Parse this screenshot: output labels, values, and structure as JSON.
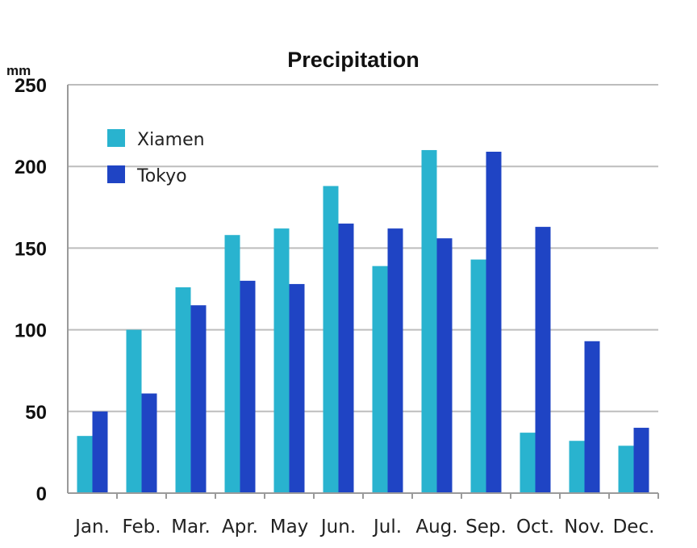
{
  "chart_data": {
    "type": "bar",
    "title": "Precipitation",
    "ylabel": "mm",
    "xlabel": "",
    "ylim": [
      0,
      250
    ],
    "yticks": [
      0,
      50,
      100,
      150,
      200,
      250
    ],
    "grid": true,
    "legend_position": "top-left",
    "categories": [
      "Jan.",
      "Feb.",
      "Mar.",
      "Apr.",
      "May",
      "Jun.",
      "Jul.",
      "Aug.",
      "Sep.",
      "Oct.",
      "Nov.",
      "Dec."
    ],
    "series": [
      {
        "name": "Xiamen",
        "color": "#29b3cf",
        "values": [
          35,
          100,
          126,
          158,
          162,
          188,
          139,
          210,
          143,
          37,
          32,
          29
        ]
      },
      {
        "name": "Tokyo",
        "color": "#1f44c4",
        "values": [
          50,
          61,
          115,
          130,
          128,
          165,
          162,
          156,
          209,
          163,
          93,
          40
        ]
      }
    ]
  }
}
